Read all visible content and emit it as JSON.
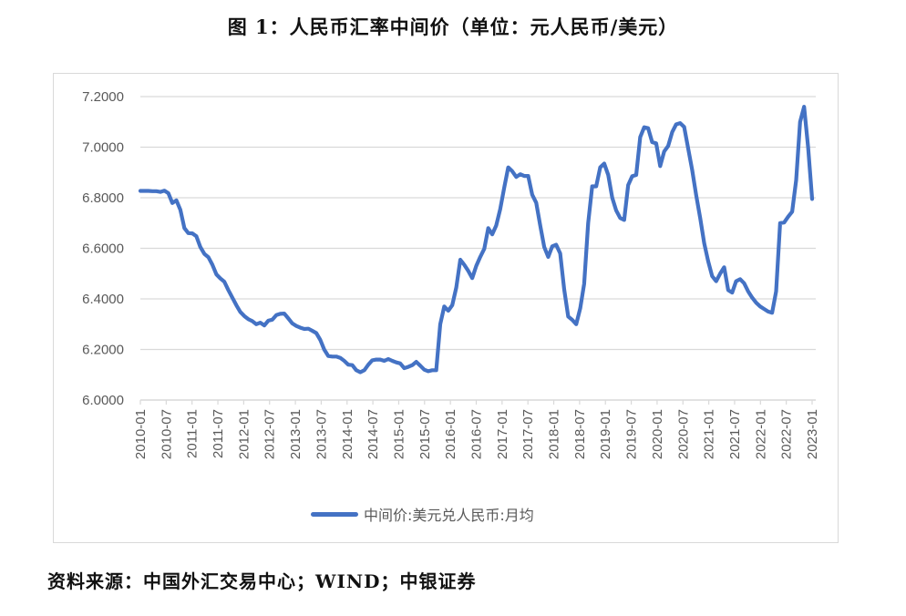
{
  "figure": {
    "title": "图 1：人民币汇率中间价（单位：元人民币/美元）",
    "source": "资料来源：中国外汇交易中心；WIND；中银证券"
  },
  "legend": {
    "label": "中间价:美元兑人民币:月均",
    "color": "#4472c4"
  },
  "colors": {
    "line": "#4472c4",
    "grid": "#d9d9d9",
    "axis_text": "#595959",
    "frame": "#d9d9d9"
  },
  "chart_data": {
    "type": "line",
    "title": "图 1：人民币汇率中间价（单位：元人民币/美元）",
    "xlabel": "",
    "ylabel": "",
    "ylim": [
      6.0,
      7.2
    ],
    "yticks": [
      "6.0000",
      "6.2000",
      "6.4000",
      "6.6000",
      "6.8000",
      "7.0000",
      "7.2000"
    ],
    "xticks": [
      "2010-01",
      "2010-07",
      "2011-01",
      "2011-07",
      "2012-01",
      "2012-07",
      "2013-01",
      "2013-07",
      "2014-01",
      "2014-07",
      "2015-01",
      "2015-07",
      "2016-01",
      "2016-07",
      "2017-01",
      "2017-07",
      "2018-01",
      "2018-07",
      "2019-01",
      "2019-07",
      "2020-01",
      "2020-07",
      "2021-01",
      "2021-07",
      "2022-01",
      "2022-07",
      "2023-01"
    ],
    "grid": true,
    "legend_position": "bottom",
    "x_start": "2010-01",
    "x_frequency": "monthly",
    "series": [
      {
        "name": "中间价:美元兑人民币:月均",
        "values": [
          6.827,
          6.827,
          6.827,
          6.826,
          6.826,
          6.823,
          6.828,
          6.818,
          6.779,
          6.79,
          6.752,
          6.68,
          6.66,
          6.659,
          6.648,
          6.605,
          6.578,
          6.565,
          6.535,
          6.497,
          6.481,
          6.468,
          6.435,
          6.405,
          6.375,
          6.348,
          6.332,
          6.32,
          6.312,
          6.3,
          6.306,
          6.295,
          6.314,
          6.318,
          6.336,
          6.341,
          6.342,
          6.323,
          6.303,
          6.293,
          6.286,
          6.281,
          6.282,
          6.274,
          6.265,
          6.238,
          6.199,
          6.174,
          6.172,
          6.172,
          6.167,
          6.155,
          6.14,
          6.138,
          6.118,
          6.11,
          6.118,
          6.14,
          6.157,
          6.16,
          6.16,
          6.155,
          6.162,
          6.155,
          6.149,
          6.145,
          6.126,
          6.131,
          6.138,
          6.151,
          6.136,
          6.12,
          6.114,
          6.118,
          6.118,
          6.3,
          6.37,
          6.353,
          6.375,
          6.445,
          6.555,
          6.535,
          6.511,
          6.482,
          6.53,
          6.566,
          6.598,
          6.68,
          6.655,
          6.69,
          6.755,
          6.84,
          6.92,
          6.905,
          6.882,
          6.893,
          6.886,
          6.886,
          6.812,
          6.78,
          6.69,
          6.605,
          6.566,
          6.608,
          6.614,
          6.58,
          6.437,
          6.33,
          6.317,
          6.3,
          6.363,
          6.46,
          6.7,
          6.845,
          6.845,
          6.92,
          6.935,
          6.89,
          6.8,
          6.75,
          6.72,
          6.712,
          6.85,
          6.885,
          6.89,
          7.04,
          7.079,
          7.075,
          7.02,
          7.015,
          6.925,
          6.983,
          7.005,
          7.06,
          7.09,
          7.095,
          7.08,
          6.995,
          6.91,
          6.81,
          6.72,
          6.62,
          6.55,
          6.49,
          6.47,
          6.5,
          6.525,
          6.435,
          6.425,
          6.47,
          6.478,
          6.462,
          6.43,
          6.405,
          6.385,
          6.37,
          6.36,
          6.35,
          6.345,
          6.43,
          6.7,
          6.702,
          6.725,
          6.745,
          6.87,
          7.1,
          7.16,
          7.0,
          6.795
        ]
      }
    ]
  }
}
